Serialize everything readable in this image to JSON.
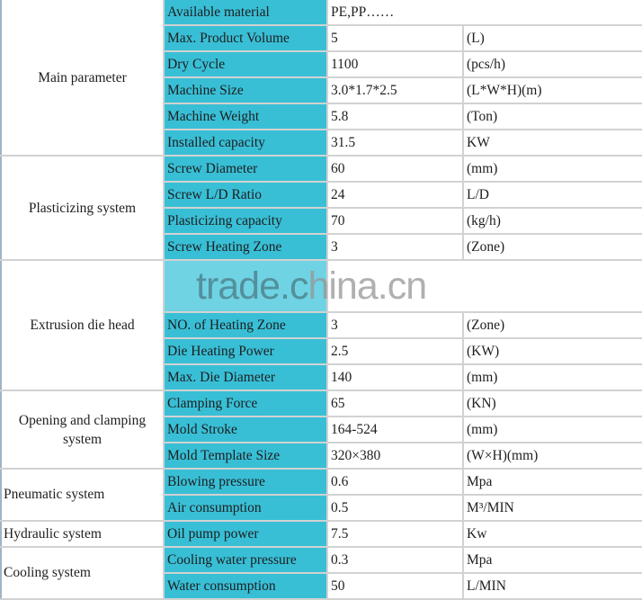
{
  "watermark": {
    "part1": "trade.c",
    "part2": "hina.cn"
  },
  "groups": [
    {
      "name": "Main parameter",
      "align": "center",
      "rows": [
        {
          "label": "Available material",
          "value": "PE,PP……",
          "unit": null
        },
        {
          "label": "Max. Product Volume",
          "value": "5",
          "unit": "(L)"
        },
        {
          "label": "Dry Cycle",
          "value": "1100",
          "unit": "(pcs/h)"
        },
        {
          "label": "Machine Size",
          "value": "3.0*1.7*2.5",
          "unit": "(L*W*H)(m)"
        },
        {
          "label": "Machine Weight",
          "value": "5.8",
          "unit": "(Ton)"
        },
        {
          "label": "Installed capacity",
          "value": "31.5",
          "unit": "KW"
        }
      ]
    },
    {
      "name": "Plasticizing system",
      "align": "center",
      "rows": [
        {
          "label": "Screw Diameter",
          "value": "60",
          "unit": "(mm)"
        },
        {
          "label": "Screw L/D Ratio",
          "value": "24",
          "unit": "L/D"
        },
        {
          "label": "Plasticizing capacity",
          "value": "70",
          "unit": "(kg/h)"
        },
        {
          "label": "Screw Heating Zone",
          "value": "3",
          "unit": "(Zone)"
        }
      ]
    },
    {
      "name": "Extrusion die head",
      "align": "center",
      "watermark_row": true,
      "rows": [
        {
          "label": "NO. of Heating Zone",
          "value": "3",
          "unit": "(Zone)"
        },
        {
          "label": "Die Heating Power",
          "value": "2.5",
          "unit": "(KW)"
        },
        {
          "label": "Max. Die Diameter",
          "value": "140",
          "unit": "(mm)"
        }
      ]
    },
    {
      "name": "Opening and clamping system",
      "align": "center",
      "rows": [
        {
          "label": "Clamping Force",
          "value": "65",
          "unit": "(KN)"
        },
        {
          "label": "Mold Stroke",
          "value": "164-524",
          "unit": "(mm)"
        },
        {
          "label": "Mold Template Size",
          "value": "320×380",
          "unit": "(W×H)(mm)"
        }
      ]
    },
    {
      "name": "Pneumatic system",
      "align": "left",
      "rows": [
        {
          "label": "Blowing pressure",
          "value": "0.6",
          "unit": "Mpa"
        },
        {
          "label": "Air consumption",
          "value": "0.5",
          "unit": "M³/MIN"
        }
      ]
    },
    {
      "name": "Hydraulic system",
      "align": "left",
      "rows": [
        {
          "label": "Oil pump power",
          "value": "7.5",
          "unit": "Kw"
        }
      ]
    },
    {
      "name": "Cooling system",
      "align": "left",
      "rows": [
        {
          "label": "Cooling water pressure",
          "value": "0.3",
          "unit": "Mpa"
        },
        {
          "label": "Water consumption",
          "value": "50",
          "unit": "L/MIN"
        }
      ]
    }
  ]
}
